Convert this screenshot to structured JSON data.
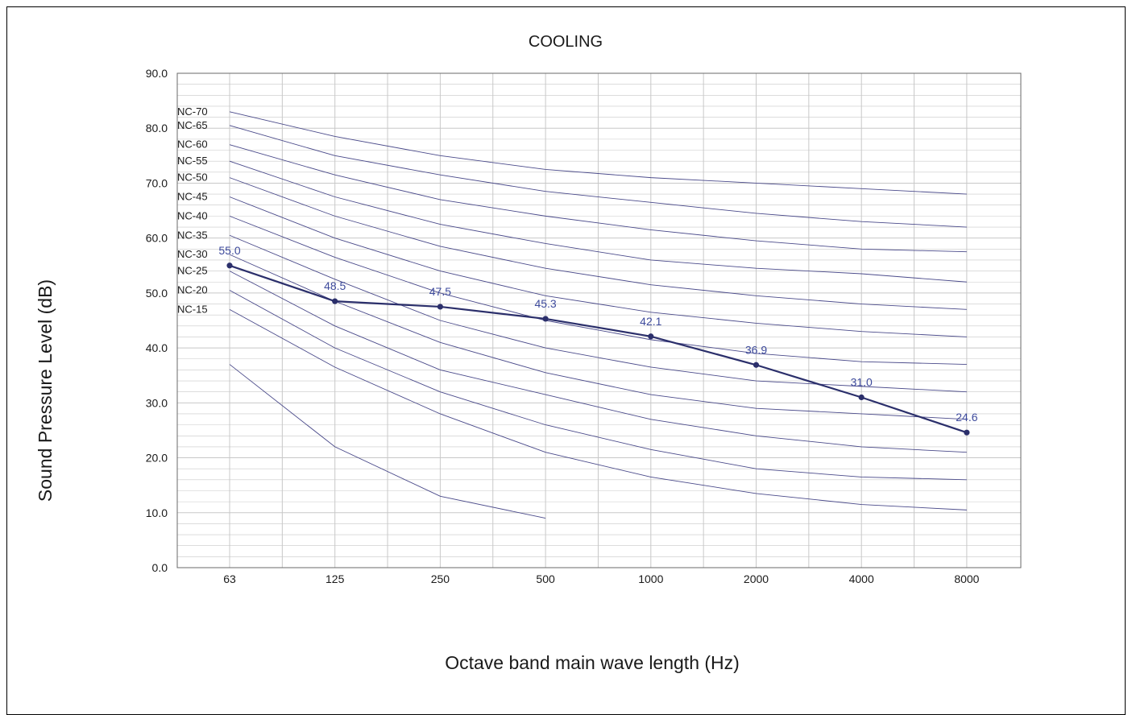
{
  "chart_data": {
    "type": "line",
    "title": "COOLING",
    "xlabel": "Octave band main wave length (Hz)",
    "ylabel": "Sound Pressure  Level (dB)",
    "categories": [
      "63",
      "125",
      "250",
      "500",
      "1000",
      "2000",
      "4000",
      "8000"
    ],
    "ylim": [
      0,
      90
    ],
    "y_ticks": [
      "0.0",
      "10.0",
      "20.0",
      "30.0",
      "40.0",
      "50.0",
      "60.0",
      "70.0",
      "80.0",
      "90.0"
    ],
    "grid": true,
    "measured": {
      "values": [
        55.0,
        48.5,
        47.5,
        45.3,
        42.1,
        36.9,
        31.0,
        24.6
      ],
      "labels": [
        "55.0",
        "48.5",
        "47.5",
        "45.3",
        "42.1",
        "36.9",
        "31.0",
        "24.6"
      ],
      "color": "#2b2f6b",
      "label_color": "#3d4a9c"
    },
    "nc_curves": [
      {
        "name": "NC-70",
        "values": [
          83.0,
          78.5,
          75.0,
          72.5,
          71.0,
          70.0,
          69.0,
          68.0
        ]
      },
      {
        "name": "NC-65",
        "values": [
          80.5,
          75.0,
          71.5,
          68.5,
          66.5,
          64.5,
          63.0,
          62.0
        ]
      },
      {
        "name": "NC-60",
        "values": [
          77.0,
          71.5,
          67.0,
          64.0,
          61.5,
          59.5,
          58.0,
          57.5
        ]
      },
      {
        "name": "NC-55",
        "values": [
          74.0,
          67.5,
          62.5,
          59.0,
          56.0,
          54.5,
          53.5,
          52.0
        ]
      },
      {
        "name": "NC-50",
        "values": [
          71.0,
          64.0,
          58.5,
          54.5,
          51.5,
          49.5,
          48.0,
          47.0
        ]
      },
      {
        "name": "NC-45",
        "values": [
          67.5,
          60.0,
          54.0,
          49.5,
          46.5,
          44.5,
          43.0,
          42.0
        ]
      },
      {
        "name": "NC-40",
        "values": [
          64.0,
          56.5,
          50.0,
          45.0,
          41.5,
          39.0,
          37.5,
          37.0
        ]
      },
      {
        "name": "NC-35",
        "values": [
          60.5,
          52.5,
          45.0,
          40.0,
          36.5,
          34.0,
          33.0,
          32.0
        ]
      },
      {
        "name": "NC-30",
        "values": [
          57.0,
          48.5,
          41.0,
          35.5,
          31.5,
          29.0,
          28.0,
          27.0
        ]
      },
      {
        "name": "NC-25",
        "values": [
          54.0,
          44.0,
          36.0,
          31.5,
          27.0,
          24.0,
          22.0,
          21.0
        ]
      },
      {
        "name": "NC-20",
        "values": [
          50.5,
          40.0,
          32.0,
          26.0,
          21.5,
          18.0,
          16.5,
          16.0
        ]
      },
      {
        "name": "NC-15",
        "values": [
          47.0,
          36.5,
          28.0,
          21.0,
          16.5,
          13.5,
          11.5,
          10.5
        ]
      },
      {
        "name": "",
        "values": [
          37.0,
          22.0,
          13.0,
          9.0,
          null,
          null,
          null,
          null
        ]
      }
    ],
    "colors": {
      "nc_line": "#4a4a8a",
      "grid": "#c8c8c8",
      "plot_border": "#6a6a6a"
    }
  }
}
